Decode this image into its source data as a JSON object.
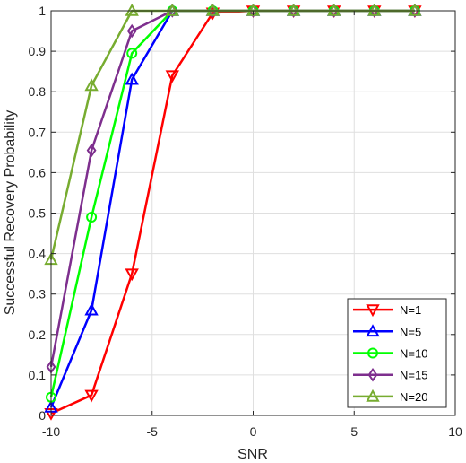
{
  "chart_data": {
    "type": "line",
    "title": "",
    "xlabel": "SNR",
    "ylabel": "Successful Recovery Probability",
    "xlim": [
      -10,
      10
    ],
    "ylim": [
      0,
      1
    ],
    "xticks": [
      -10,
      -5,
      0,
      5,
      10
    ],
    "xtick_labels": [
      "-10",
      "-5",
      "0",
      "5",
      "10"
    ],
    "yticks": [
      0,
      0.1,
      0.2,
      0.3,
      0.4,
      0.5,
      0.6,
      0.7,
      0.8,
      0.9,
      1
    ],
    "ytick_labels": [
      "0",
      "0.1",
      "0.2",
      "0.3",
      "0.4",
      "0.5",
      "0.6",
      "0.7",
      "0.8",
      "0.9",
      "1"
    ],
    "grid": true,
    "legend_position": "bottom-right",
    "x": [
      -10,
      -8,
      -6,
      -4,
      -2,
      0,
      2,
      4,
      6,
      8
    ],
    "series": [
      {
        "name": "N=1",
        "color": "#ff0000",
        "marker": "triangle-down",
        "values": [
          0.005,
          0.05,
          0.35,
          0.84,
          0.995,
          1,
          1,
          1,
          1,
          1
        ]
      },
      {
        "name": "N=5",
        "color": "#0000ff",
        "marker": "triangle-up",
        "values": [
          0.02,
          0.26,
          0.83,
          1,
          1,
          1,
          1,
          1,
          1,
          1
        ]
      },
      {
        "name": "N=10",
        "color": "#00ff00",
        "marker": "circle",
        "values": [
          0.045,
          0.49,
          0.895,
          1,
          1,
          1,
          1,
          1,
          1,
          1
        ]
      },
      {
        "name": "N=15",
        "color": "#7e2f8e",
        "marker": "diamond",
        "values": [
          0.12,
          0.655,
          0.95,
          1,
          1,
          1,
          1,
          1,
          1,
          1
        ]
      },
      {
        "name": "N=20",
        "color": "#77ac30",
        "marker": "triangle-up",
        "values": [
          0.385,
          0.815,
          1,
          1,
          1,
          1,
          1,
          1,
          1,
          1
        ]
      }
    ]
  }
}
